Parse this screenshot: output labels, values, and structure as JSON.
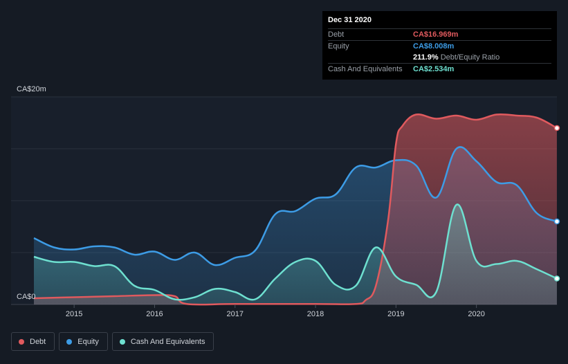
{
  "tooltip": {
    "date": "Dec 31 2020",
    "rows": [
      {
        "label": "Debt",
        "value": "CA$16.969m",
        "color": "#e05a5e"
      },
      {
        "label": "Equity",
        "value": "CA$8.008m",
        "color": "#3d9ce6"
      },
      {
        "label": "",
        "value": "211.9%",
        "suffix": "Debt/Equity Ratio",
        "color": "#ffffff"
      },
      {
        "label": "Cash And Equivalents",
        "value": "CA$2.534m",
        "color": "#6ee0d0"
      }
    ]
  },
  "legend": [
    {
      "label": "Debt",
      "color": "#e05a5e"
    },
    {
      "label": "Equity",
      "color": "#3d9ce6"
    },
    {
      "label": "Cash And Equivalents",
      "color": "#6ee0d0"
    }
  ],
  "chart_data": {
    "type": "area",
    "y_top_label": "CA$20m",
    "y_bottom_label": "CA$0",
    "ylim": [
      0,
      20
    ],
    "xlim": [
      2014.5,
      2021.0
    ],
    "x_ticks": [
      2015,
      2016,
      2017,
      2018,
      2019,
      2020
    ],
    "x_tick_labels": [
      "2015",
      "2016",
      "2017",
      "2018",
      "2019",
      "2020"
    ],
    "grid": true,
    "series": [
      {
        "name": "Debt",
        "color": "#e05a5e",
        "x": [
          2014.5,
          2015.0,
          2015.5,
          2016.0,
          2016.25,
          2016.4,
          2017.0,
          2018.0,
          2018.5,
          2018.62,
          2018.75,
          2018.9,
          2019.0,
          2019.08,
          2019.25,
          2019.5,
          2019.75,
          2020.0,
          2020.25,
          2020.5,
          2020.75,
          2021.0
        ],
        "y": [
          0.6,
          0.7,
          0.8,
          0.9,
          0.8,
          0.05,
          0.05,
          0.05,
          0.05,
          0.4,
          1.8,
          8.0,
          15.5,
          17.2,
          18.3,
          17.9,
          18.2,
          17.8,
          18.3,
          18.2,
          18.0,
          17.0
        ]
      },
      {
        "name": "Equity",
        "color": "#3d9ce6",
        "x": [
          2014.5,
          2014.75,
          2015.0,
          2015.25,
          2015.5,
          2015.75,
          2016.0,
          2016.25,
          2016.5,
          2016.75,
          2017.0,
          2017.25,
          2017.5,
          2017.75,
          2018.0,
          2018.25,
          2018.5,
          2018.75,
          2019.0,
          2019.25,
          2019.5,
          2019.75,
          2020.0,
          2020.25,
          2020.5,
          2020.75,
          2021.0
        ],
        "y": [
          6.4,
          5.5,
          5.3,
          5.6,
          5.5,
          4.8,
          5.1,
          4.3,
          5.0,
          3.8,
          4.5,
          5.2,
          8.7,
          9.0,
          10.2,
          10.6,
          13.2,
          13.2,
          13.9,
          13.4,
          10.3,
          15.0,
          13.8,
          11.8,
          11.5,
          8.8,
          8.0
        ]
      },
      {
        "name": "Cash And Equivalents",
        "color": "#6ee0d0",
        "x": [
          2014.5,
          2014.75,
          2015.0,
          2015.25,
          2015.5,
          2015.75,
          2016.0,
          2016.25,
          2016.5,
          2016.75,
          2017.0,
          2017.25,
          2017.5,
          2017.75,
          2018.0,
          2018.25,
          2018.5,
          2018.75,
          2019.0,
          2019.25,
          2019.5,
          2019.75,
          2020.0,
          2020.25,
          2020.5,
          2020.75,
          2021.0
        ],
        "y": [
          4.6,
          4.1,
          4.1,
          3.7,
          3.7,
          1.8,
          1.4,
          0.5,
          0.7,
          1.5,
          1.2,
          0.5,
          2.5,
          4.1,
          4.2,
          1.9,
          1.8,
          5.5,
          2.7,
          1.9,
          1.2,
          9.6,
          4.2,
          3.9,
          4.2,
          3.4,
          2.5
        ]
      }
    ]
  }
}
